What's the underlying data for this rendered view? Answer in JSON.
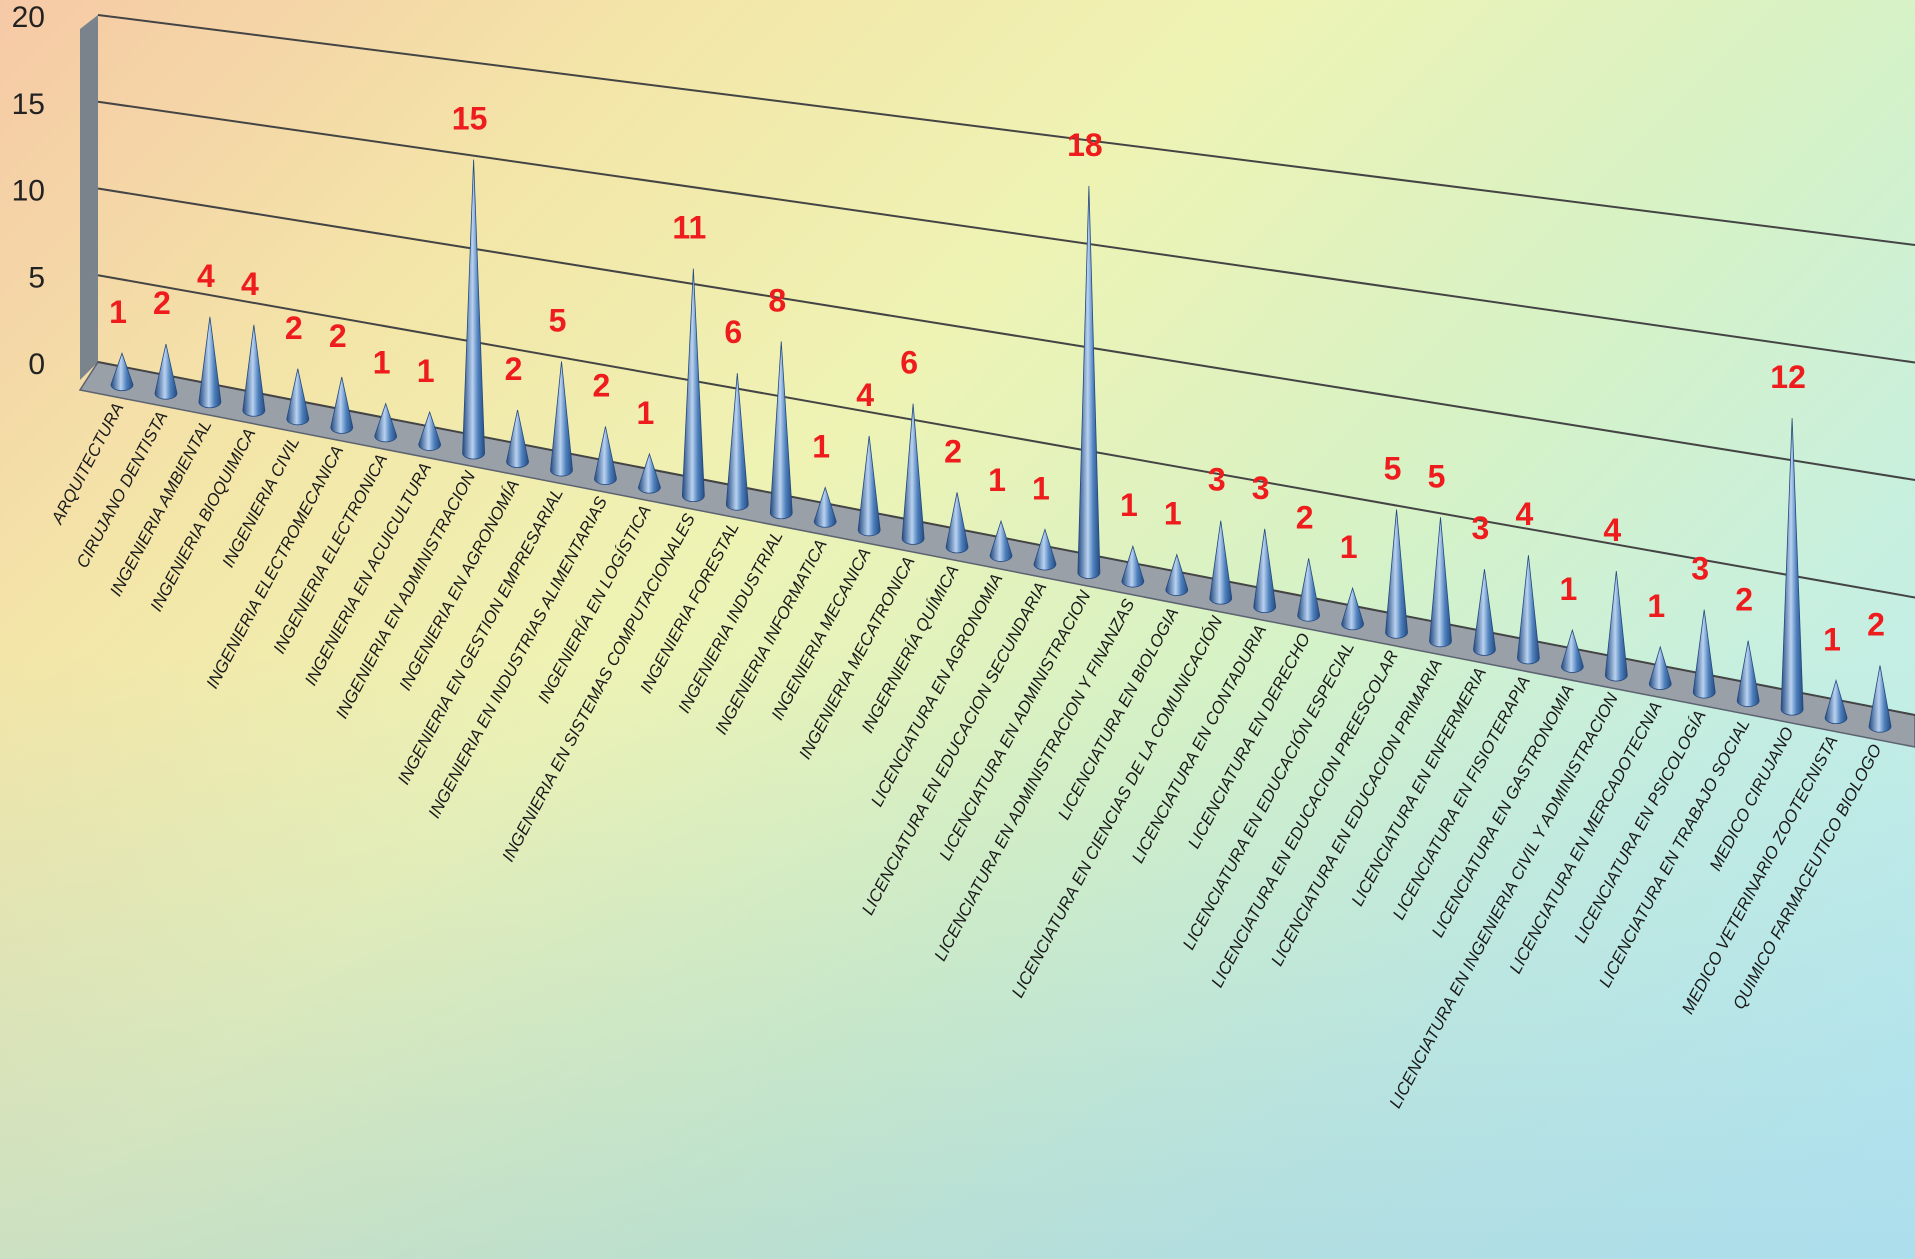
{
  "chart_data": {
    "type": "bar",
    "categories": [
      "ARQUITECTURA",
      "CIRUJANO DENTISTA",
      "INGENIERIA  AMBIENTAL",
      "INGENIERIA BIOQUIMICA",
      "INGENIERIA CIVIL",
      "INGENIERIA ELECTROMECANICA",
      "INGENIERIA ELECTRONICA",
      "INGENIERIA EN ACUICULTURA",
      "INGENIERIA EN ADMINISTRACION",
      "INGENIERIA EN AGRONOMÍA",
      "INGENIERIA EN GESTION EMPRESARIAL",
      "INGENIERIA EN INDUSTRIAS ALIMENTARIAS",
      "INGENIERÍA EN LOGÍSTICA",
      "INGENIERIA EN SISTEMAS COMPUTACIONALES",
      "INGENIERIA FORESTAL",
      "INGENIERIA INDUSTRIAL",
      "INGENIERIA INFORMATICA",
      "INGENIERIA MECANICA",
      "INGENIERIA MECATRONICA",
      "INGERNIERÍA QUÍMICA",
      "LICENCIATURA EN  AGRONOMIA",
      "LICENCIATURA EN  EDUCACION SECUNDARIA",
      "LICENCIATURA EN ADMINISTRACION",
      "LICENCIATURA EN ADMINISTRACION Y FINANZAS",
      "LICENCIATURA EN BIOLOGIA",
      "LICENCIATURA EN CIENCIAS DE LA COMUNICACIÓN",
      "LICENCIATURA EN CONTADURIA",
      "LICENCIATURA EN DERECHO",
      "LICENCIATURA EN EDUCACIÓN ESPECIAL",
      "LICENCIATURA EN EDUCACION PREESCOLAR",
      "LICENCIATURA EN EDUCACION PRIMARIA",
      "LICENCIATURA EN ENFERMERIA",
      "LICENCIATURA EN FISIOTERAPIA",
      "LICENCIATURA EN GASTRONOMIA",
      "LICENCIATURA EN INGENIERIA CIVIL Y ADMINISTRACION",
      "LICENCIATURA EN MERCADOTECNIA",
      "LICENCIATURA EN PSICOLOGÍA",
      "LICENCIATURA EN TRABAJO SOCIAL",
      "MEDICO CIRUJANO",
      "MEDICO VETERINARIO ZOOTECNISTA",
      "QUIMICO FARMACEUTICO BIOLOGO"
    ],
    "values": [
      1,
      2,
      4,
      4,
      2,
      2,
      1,
      1,
      15,
      2,
      5,
      2,
      1,
      11,
      6,
      8,
      1,
      4,
      6,
      2,
      1,
      1,
      18,
      1,
      1,
      3,
      3,
      2,
      1,
      5,
      5,
      3,
      4,
      1,
      4,
      1,
      3,
      2,
      12,
      1,
      2
    ],
    "yticks": [
      "0",
      "5",
      "10",
      "15",
      "20"
    ],
    "ylim": [
      0,
      20
    ],
    "mark": "cone",
    "three_d": true,
    "colors": {
      "cone": "#4f81bd",
      "cone_dark": "#244a80",
      "cone_light": "#b9d2f0",
      "data_label": "#ee1c1c",
      "back_wall": "#6d7a8a",
      "floor": "#9aa0a8",
      "gridline": "#444444"
    },
    "grid": true,
    "legend": "none"
  }
}
